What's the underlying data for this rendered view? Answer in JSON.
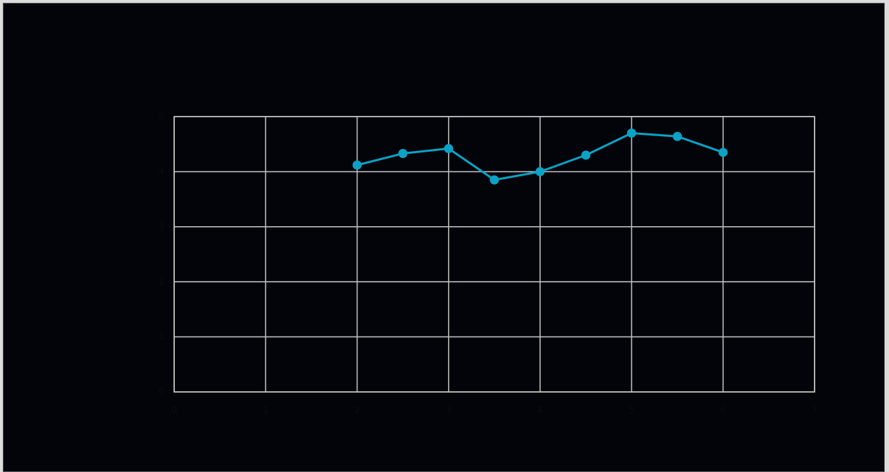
{
  "chart_data": {
    "type": "line",
    "title": "",
    "xlabel": "",
    "ylabel": "",
    "x": [
      2,
      2.5,
      3,
      3.5,
      4,
      4.5,
      5,
      5.5,
      6
    ],
    "xlim": [
      0,
      7
    ],
    "ylim": [
      0,
      5
    ],
    "xticks": [
      0,
      1,
      2,
      3,
      4,
      5,
      6,
      7
    ],
    "yticks": [
      0,
      1,
      2,
      3,
      4,
      5
    ],
    "grid": true,
    "legend": "none",
    "series": [
      {
        "values": [
          4.12,
          4.33,
          4.42,
          3.85,
          4.0,
          4.3,
          4.7,
          4.64,
          4.35
        ],
        "color": "#0aa3c6"
      }
    ]
  }
}
